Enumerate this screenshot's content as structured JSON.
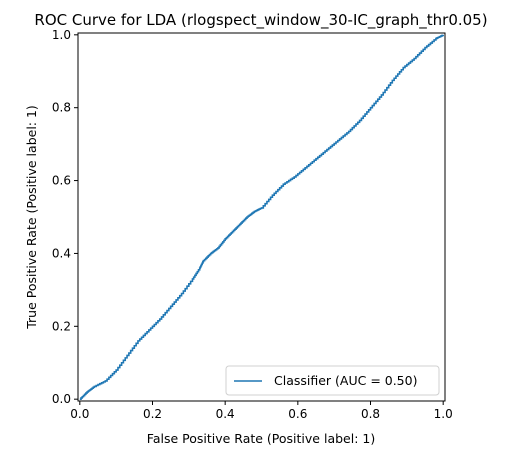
{
  "chart_data": {
    "type": "line",
    "title": "ROC Curve for LDA (rlogspect_window_30-IC_graph_thr0.05)",
    "xlabel": "False Positive Rate (Positive label: 1)",
    "ylabel": "True Positive Rate (Positive label: 1)",
    "xlim": [
      0,
      1
    ],
    "ylim": [
      0,
      1
    ],
    "xticks": [
      "0.0",
      "0.2",
      "0.4",
      "0.6",
      "0.8",
      "1.0"
    ],
    "yticks": [
      "0.0",
      "0.2",
      "0.4",
      "0.6",
      "0.8",
      "1.0"
    ],
    "grid": false,
    "legend": {
      "position": "lower-right"
    },
    "series": [
      {
        "name": "Classifier (AUC = 0.50)",
        "color": "#1f77b4",
        "x": [
          0.0,
          0.02,
          0.04,
          0.07,
          0.1,
          0.13,
          0.16,
          0.19,
          0.22,
          0.25,
          0.28,
          0.31,
          0.33,
          0.34,
          0.36,
          0.38,
          0.4,
          0.42,
          0.44,
          0.46,
          0.48,
          0.5,
          0.53,
          0.56,
          0.59,
          0.62,
          0.65,
          0.68,
          0.71,
          0.74,
          0.77,
          0.8,
          0.83,
          0.86,
          0.89,
          0.92,
          0.95,
          0.98,
          1.0
        ],
        "y": [
          0.0,
          0.02,
          0.035,
          0.05,
          0.08,
          0.12,
          0.16,
          0.19,
          0.22,
          0.255,
          0.29,
          0.33,
          0.36,
          0.38,
          0.4,
          0.415,
          0.44,
          0.46,
          0.48,
          0.5,
          0.515,
          0.525,
          0.56,
          0.59,
          0.61,
          0.635,
          0.66,
          0.685,
          0.71,
          0.735,
          0.765,
          0.8,
          0.835,
          0.875,
          0.91,
          0.935,
          0.965,
          0.99,
          1.0
        ]
      }
    ]
  }
}
